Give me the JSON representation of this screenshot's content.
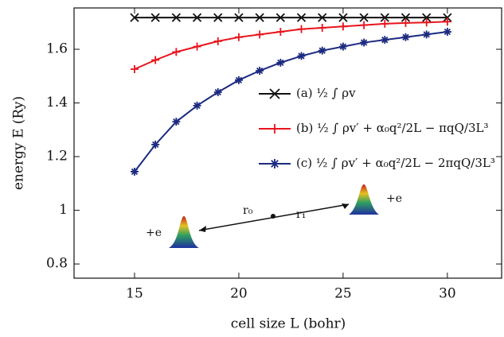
{
  "chart_data": {
    "type": "line",
    "x_label": "cell size L (bohr)",
    "y_label": "energy E (Ry)",
    "x": [
      15,
      16,
      17,
      18,
      19,
      20,
      21,
      22,
      23,
      24,
      25,
      26,
      27,
      28,
      29,
      30
    ],
    "series": [
      {
        "name": "(a) ½ ∫ ρv",
        "color": "#111111",
        "marker": "x",
        "values": [
          1.718,
          1.718,
          1.718,
          1.718,
          1.718,
          1.718,
          1.718,
          1.718,
          1.718,
          1.718,
          1.718,
          1.718,
          1.718,
          1.718,
          1.718,
          1.718
        ]
      },
      {
        "name": "(b) ½ ∫ ρv′ + α₀q²/2L − πqQ/3L³",
        "color": "#e8141c",
        "marker": "+",
        "values": [
          1.526,
          1.56,
          1.59,
          1.61,
          1.63,
          1.645,
          1.655,
          1.665,
          1.675,
          1.68,
          1.685,
          1.69,
          1.695,
          1.698,
          1.7,
          1.703
        ]
      },
      {
        "name": "(c) ½ ∫ ρv′ + α₀q²/2L − 2πqQ/3L³",
        "color": "#1c2a80",
        "marker": "*",
        "values": [
          1.144,
          1.245,
          1.33,
          1.39,
          1.44,
          1.485,
          1.52,
          1.55,
          1.575,
          1.595,
          1.61,
          1.625,
          1.635,
          1.645,
          1.655,
          1.665
        ]
      }
    ],
    "xlim": [
      12.1,
      32.6
    ],
    "xticks": [
      15,
      20,
      25,
      30
    ],
    "ylim": [
      0.747,
      1.754
    ],
    "yticks": [
      0.8,
      1,
      1.2,
      1.4,
      1.6
    ],
    "grid": false,
    "annotations": [
      "r₀",
      "r₁",
      "+e",
      "+e"
    ]
  }
}
